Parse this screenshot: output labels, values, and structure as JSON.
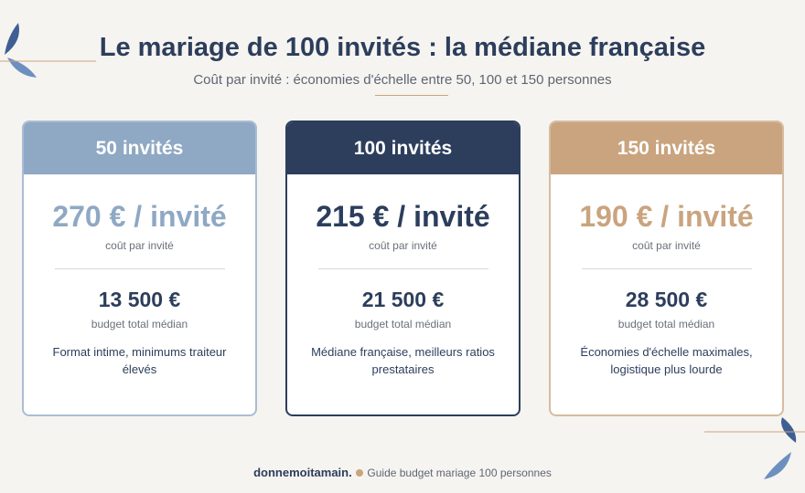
{
  "header": {
    "title": "Le mariage de 100 invités : la médiane française",
    "subtitle": "Coût par invité : économies d'échelle entre 50, 100 et 150 personnes"
  },
  "cards": [
    {
      "header": "50 invités",
      "price": "270 € / invité",
      "price_label": "coût par invité",
      "total": "13 500 €",
      "total_label": "budget total médian",
      "description": "Format intime, minimums traiteur élevés"
    },
    {
      "header": "100 invités",
      "price": "215 € / invité",
      "price_label": "coût par invité",
      "total": "21 500 €",
      "total_label": "budget total médian",
      "description": "Médiane française, meilleurs ratios prestataires"
    },
    {
      "header": "150 invités",
      "price": "190 € / invité",
      "price_label": "coût par invité",
      "total": "28 500 €",
      "total_label": "budget total médian",
      "description": "Économies d'échelle maximales, logistique plus lourde"
    }
  ],
  "footer": {
    "brand": "donnemoitamain.",
    "text": "Guide budget mariage 100 personnes"
  }
}
